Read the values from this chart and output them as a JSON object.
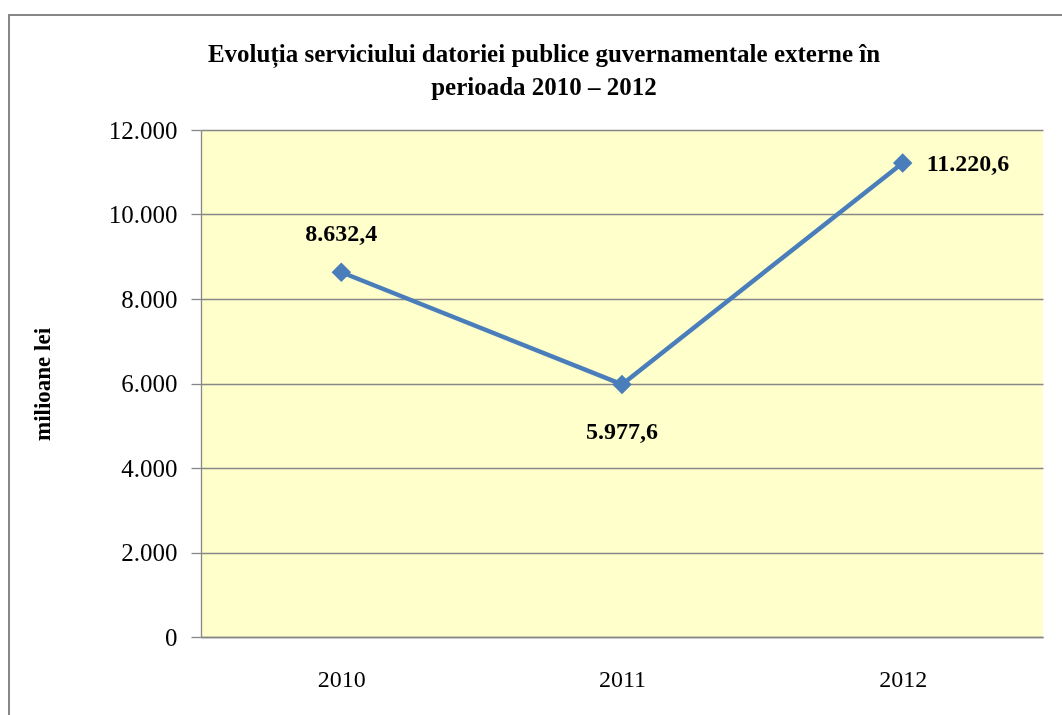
{
  "chart_data": {
    "type": "line",
    "title": "Evoluția serviciului datoriei publice guvernamentale externe în perioada 2010 – 2012",
    "ylabel": "milioane lei",
    "categories": [
      "2010",
      "2011",
      "2012"
    ],
    "values": [
      8632.4,
      5977.6,
      11220.6
    ],
    "color": "#4a7ebb",
    "value_labels": [
      "8.632,4",
      "5.977,6",
      "11.220,6"
    ],
    "ylim": [
      0,
      12000
    ],
    "yticks": [
      0,
      {
        "value": 2000,
        "label": "2.000"
      },
      {
        "value": 4000,
        "label": "4.000"
      },
      {
        "value": 6000,
        "label": "6.000"
      },
      {
        "value": 8000,
        "label": "8.000"
      },
      {
        "value": 10000,
        "label": "10.000"
      },
      {
        "value": 12000,
        "label": "12.000"
      }
    ],
    "grid": "y",
    "marker": "diamond",
    "line_style": "solid"
  }
}
